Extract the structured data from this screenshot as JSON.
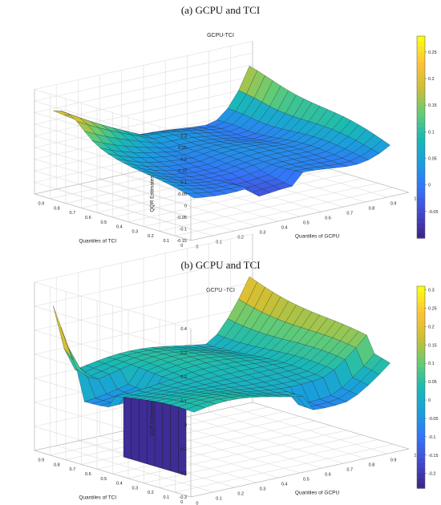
{
  "chart_data": [
    {
      "type": "surface",
      "panel_caption": "(a) GCPU and TCI",
      "title": "GCPU-TCI",
      "xlabel": "Quantiles of GCPU",
      "ylabel": "Quantiles of TCI",
      "zlabel": "QQR Estimates",
      "x_ticks": [
        "0",
        "0.1",
        "0.2",
        "0.3",
        "0.4",
        "0.5",
        "0.6",
        "0.7",
        "0.8",
        "0.9",
        "1"
      ],
      "y_ticks": [
        "0",
        "0.1",
        "0.2",
        "0.3",
        "0.4",
        "0.5",
        "0.6",
        "0.7",
        "0.8",
        "0.9"
      ],
      "z_ticks": [
        "-0.15",
        "-0.1",
        "-0.05",
        "0",
        "0.05",
        "0.1",
        "0.15",
        "0.2",
        "0.25",
        "0.3"
      ],
      "zlim": [
        -0.15,
        0.3
      ],
      "colorbar_ticks": [
        "-0.05",
        "0",
        "0.05",
        "0.1",
        "0.15",
        "0.2",
        "0.25"
      ],
      "clim": [
        -0.1,
        0.28
      ],
      "colormap": "parula",
      "grid": true,
      "qx": [
        0.05,
        0.1,
        0.15,
        0.2,
        0.25,
        0.3,
        0.35,
        0.4,
        0.45,
        0.5,
        0.55,
        0.6,
        0.65,
        0.7,
        0.75,
        0.8,
        0.85,
        0.9,
        0.95
      ],
      "qy": [
        0.05,
        0.1,
        0.15,
        0.2,
        0.25,
        0.3,
        0.35,
        0.4,
        0.45,
        0.5,
        0.55,
        0.6,
        0.65,
        0.7,
        0.75,
        0.8,
        0.85,
        0.9,
        0.95
      ],
      "z_model": "edge_a"
    },
    {
      "type": "surface",
      "panel_caption": "(b) GCPU and TCI",
      "title": "GCPU -TCI",
      "xlabel": "Quantiles of GCPU",
      "ylabel": "Quantiles of TCI",
      "zlabel": "QQR Estimates",
      "x_ticks": [
        "0",
        "0.1",
        "0.2",
        "0.3",
        "0.4",
        "0.5",
        "0.6",
        "0.7",
        "0.8",
        "0.9",
        "1"
      ],
      "y_ticks": [
        "0",
        "0.1",
        "0.2",
        "0.3",
        "0.4",
        "0.5",
        "0.6",
        "0.7",
        "0.8",
        "0.9"
      ],
      "z_ticks": [
        "-0.3",
        "-0.2",
        "-0.1",
        "0",
        "0.1",
        "0.2",
        "0.3",
        "0.4"
      ],
      "zlim": [
        -0.3,
        0.4
      ],
      "colorbar_ticks": [
        "-0.2",
        "-0.15",
        "-0.1",
        "-0.05",
        "0",
        "0.05",
        "0.1",
        "0.15",
        "0.2",
        "0.25",
        "0.3"
      ],
      "clim": [
        -0.24,
        0.31
      ],
      "colormap": "parula",
      "grid": true,
      "qx": [
        0.05,
        0.1,
        0.15,
        0.2,
        0.25,
        0.3,
        0.35,
        0.4,
        0.45,
        0.5,
        0.55,
        0.6,
        0.65,
        0.7,
        0.75,
        0.8,
        0.85,
        0.9,
        0.95
      ],
      "qy": [
        0.05,
        0.1,
        0.15,
        0.2,
        0.25,
        0.3,
        0.35,
        0.4,
        0.45,
        0.5,
        0.55,
        0.6,
        0.65,
        0.7,
        0.75,
        0.8,
        0.85,
        0.9,
        0.95
      ],
      "z_model": "edge_b"
    }
  ]
}
